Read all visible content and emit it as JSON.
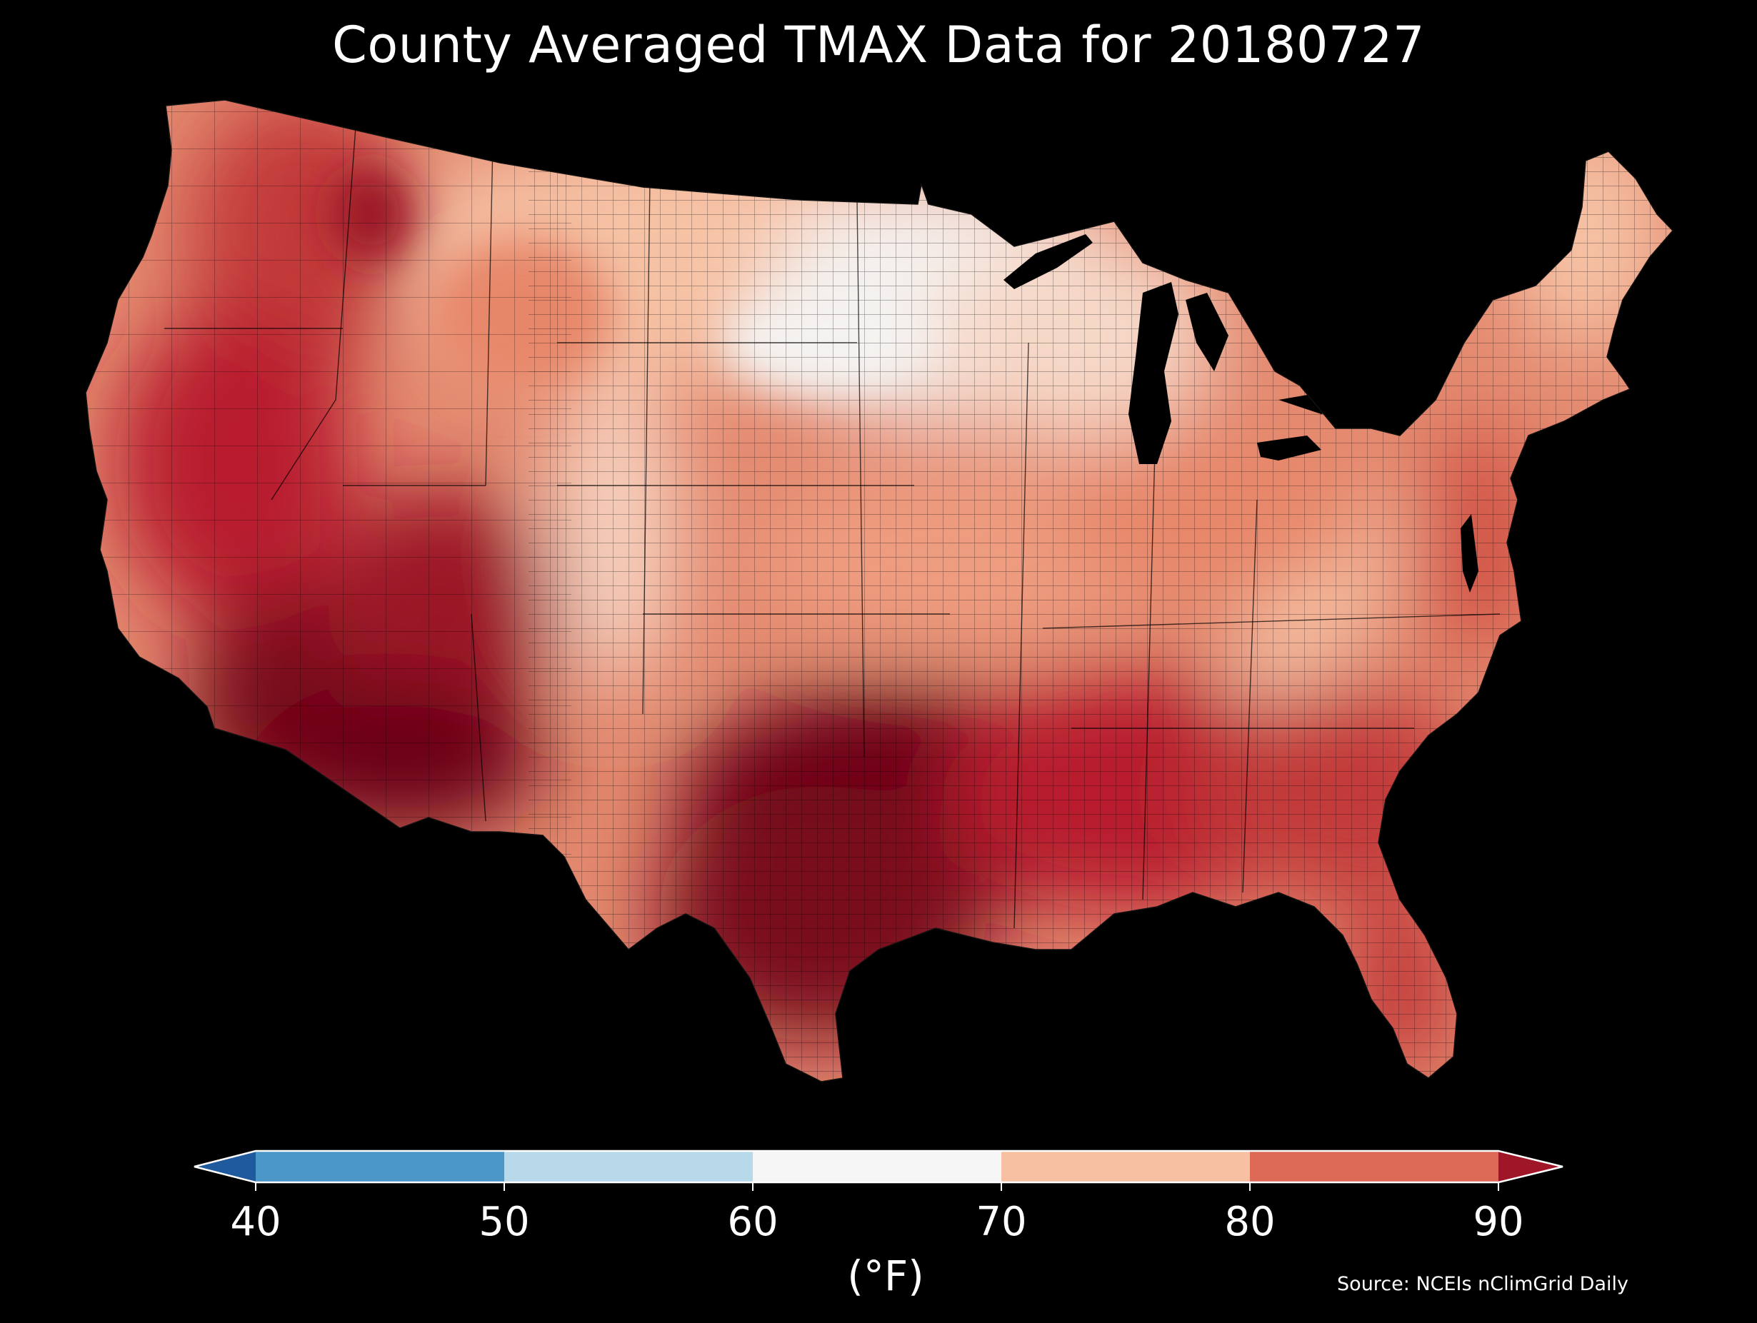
{
  "title": "County Averaged TMAX Data for 20180727",
  "unit_label": "(°F)",
  "source": "Source: NCEIs nClimGrid Daily",
  "colorbar": {
    "ticks": [
      "40",
      "50",
      "60",
      "70",
      "80",
      "90"
    ],
    "bins": [
      {
        "range": "<40",
        "color": "#1f5a9e"
      },
      {
        "range": "40-50",
        "color": "#4b97c7"
      },
      {
        "range": "50-60",
        "color": "#b8d9ea"
      },
      {
        "range": "60-70",
        "color": "#f6f6f6"
      },
      {
        "range": "70-80",
        "color": "#f8c0a2"
      },
      {
        "range": "80-90",
        "color": "#dc6a57"
      },
      {
        "range": ">90",
        "color": "#9e1628"
      }
    ],
    "extend": "both"
  },
  "map": {
    "region": "Contiguous United States",
    "units": "counties",
    "variable": "TMAX",
    "date": "20180727",
    "colors": {
      "cool": "#f4f2f0",
      "warm_light": "#f6c2a5",
      "warm_mid": "#e48a70",
      "warm": "#d25447",
      "hot": "#b81f2e",
      "very_hot": "#8e0f24",
      "extreme": "#6a0018",
      "water": "#000000",
      "border": "#000000"
    }
  }
}
